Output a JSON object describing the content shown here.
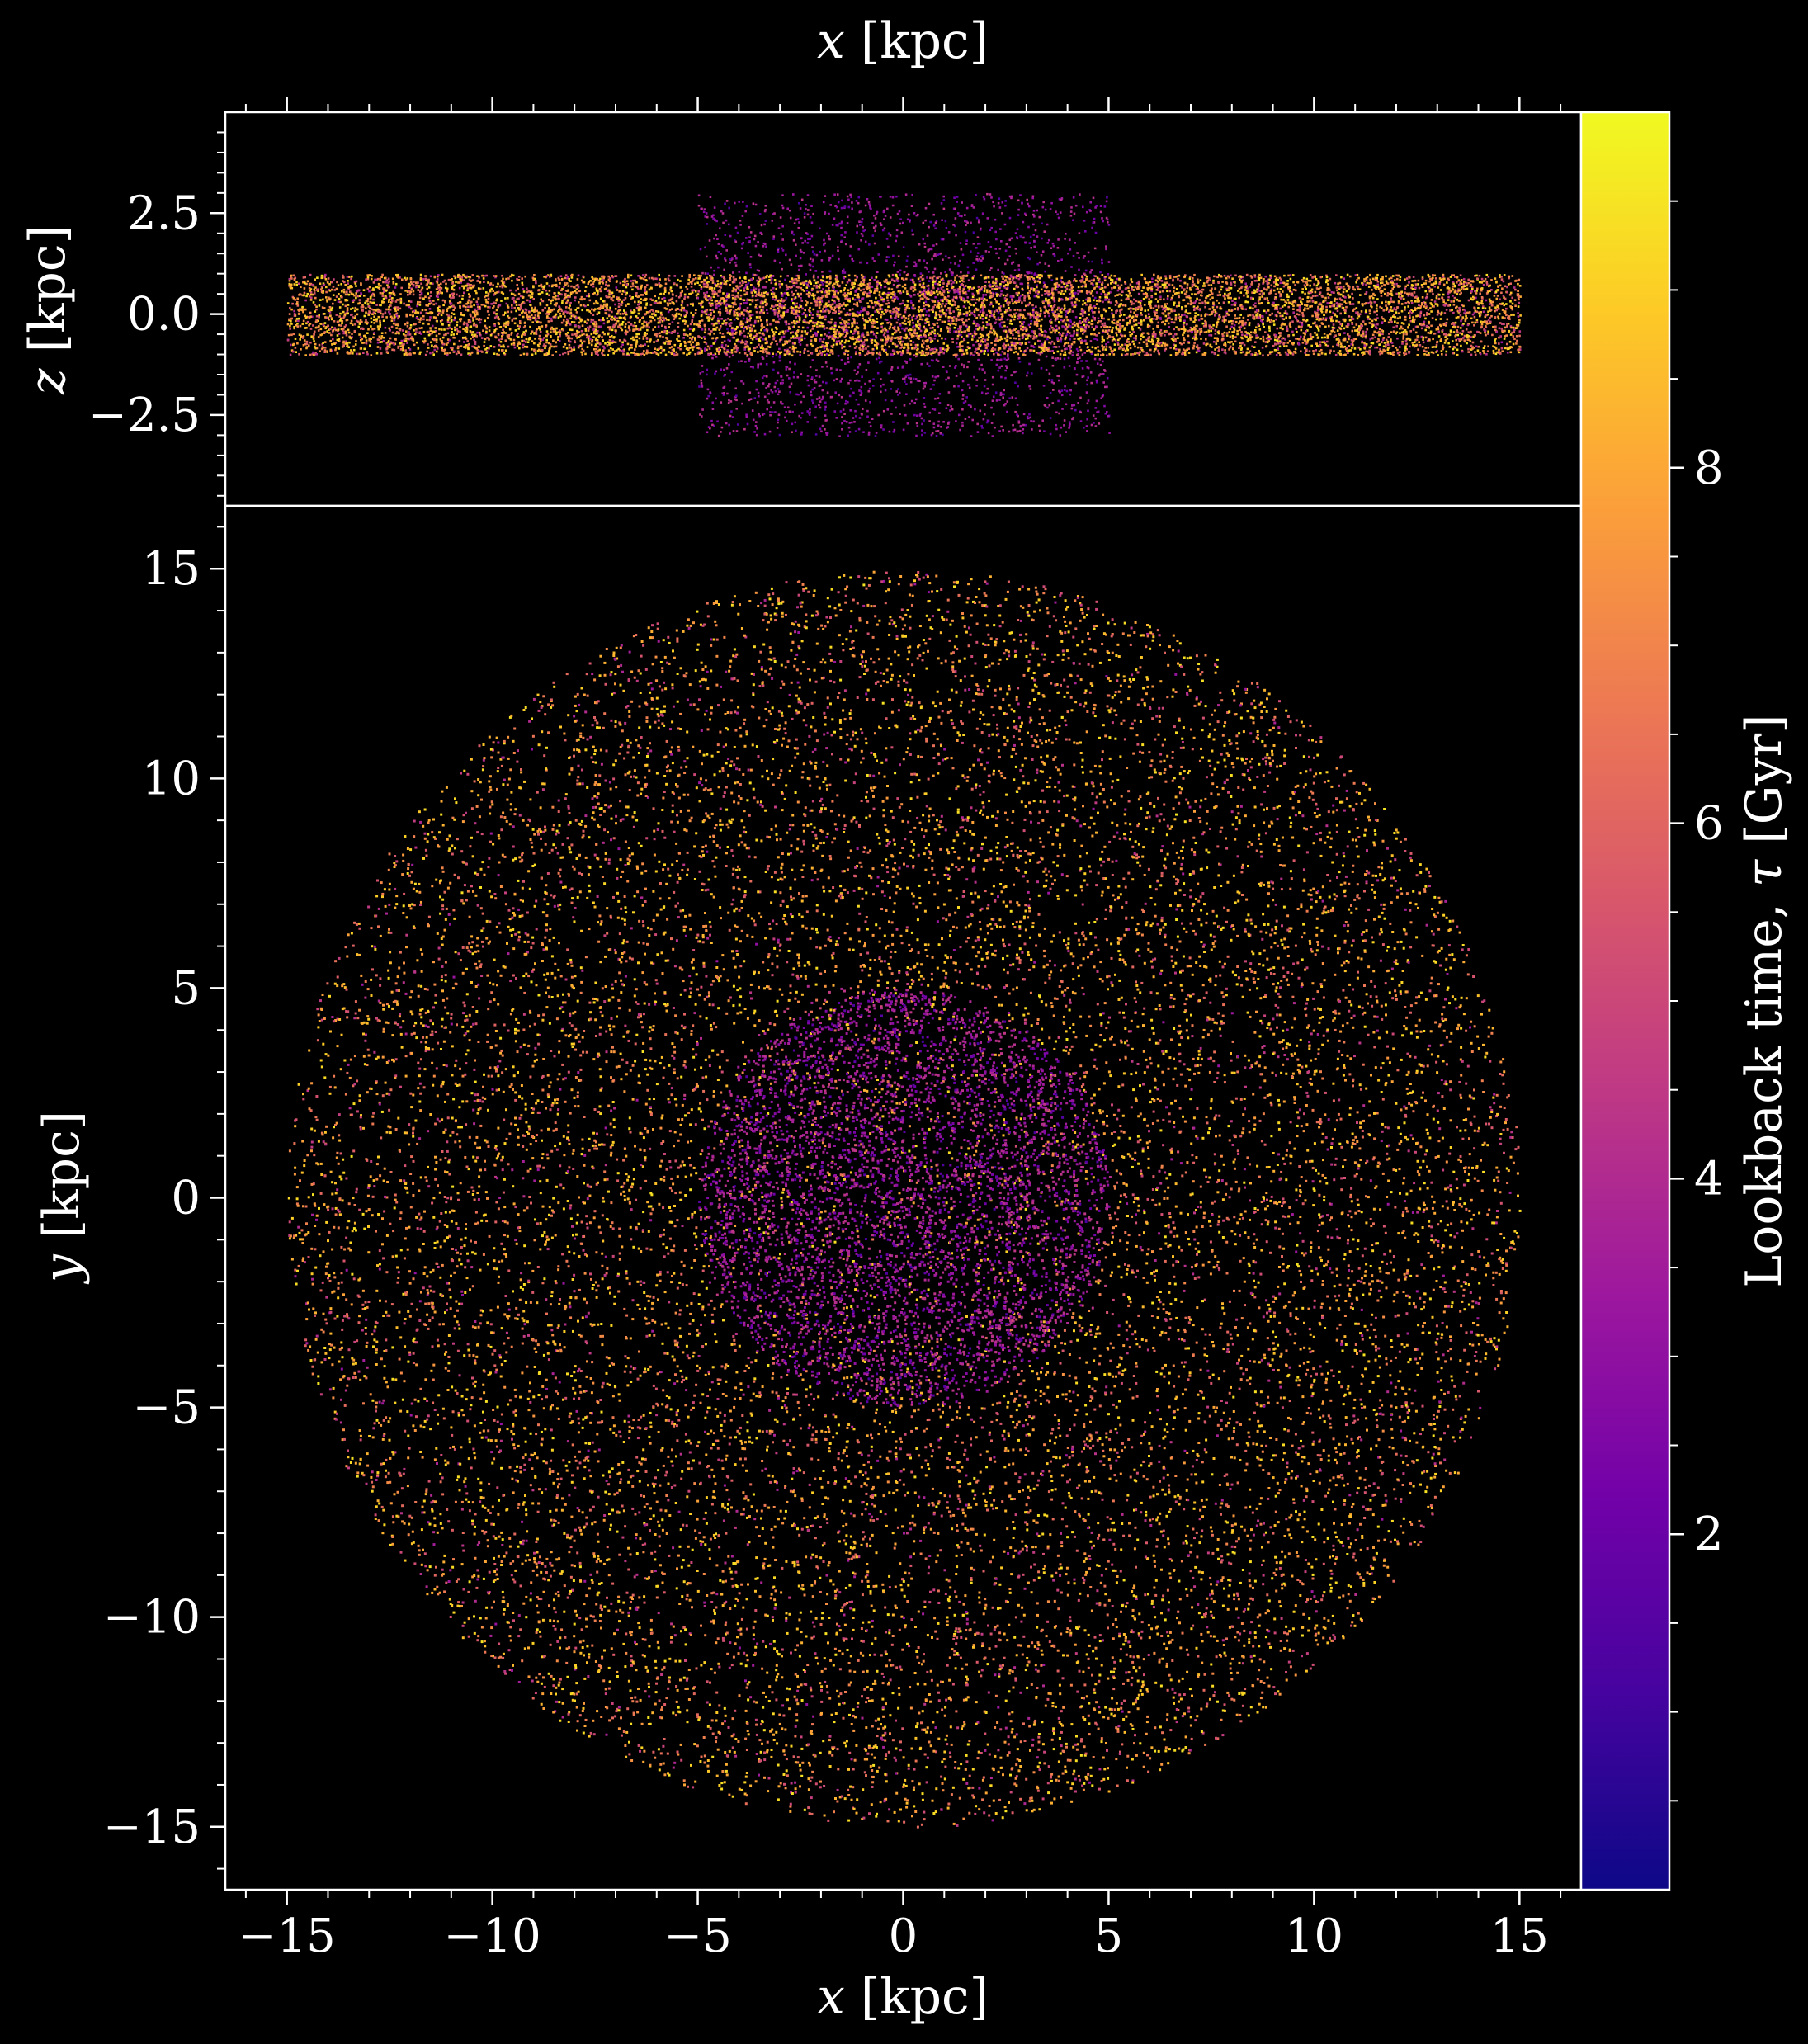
{
  "chart_data": [
    {
      "type": "scatter",
      "panel": "edge-on (x-z projection)",
      "title": "",
      "xlabel_top": "x [kpc]",
      "ylabel": "z [kpc]",
      "xlim": [
        -16.5,
        16.5
      ],
      "ylim": [
        -4.75,
        5.0
      ],
      "y_ticks": [
        -2.5,
        0.0,
        2.5
      ],
      "y_tick_labels": [
        "−2.5",
        "0.0",
        "2.5"
      ],
      "components": [
        {
          "component": "bulge (box)",
          "x_range": [
            -5,
            5
          ],
          "z_range": [
            -3,
            3
          ],
          "age_range_gyr": [
            1.0,
            4.5
          ]
        },
        {
          "component": "disk (slab)",
          "x_range": [
            -15,
            15
          ],
          "z_range": [
            -1,
            1
          ],
          "age_range_gyr": [
            3.0,
            9.5
          ]
        }
      ]
    },
    {
      "type": "scatter",
      "panel": "face-on (x-y projection)",
      "title": "",
      "xlabel": "x [kpc]",
      "ylabel": "y [kpc]",
      "xlim": [
        -16.5,
        16.5
      ],
      "ylim": [
        -16.5,
        16.5
      ],
      "x_ticks": [
        -15,
        -10,
        -5,
        0,
        5,
        10,
        15
      ],
      "x_tick_labels": [
        "−15",
        "−10",
        "−5",
        "0",
        "5",
        "10",
        "15"
      ],
      "y_ticks": [
        -15,
        -10,
        -5,
        0,
        5,
        10,
        15
      ],
      "y_tick_labels": [
        "−15",
        "−10",
        "−5",
        "0",
        "5",
        "10",
        "15"
      ],
      "components": [
        {
          "component": "disk",
          "radius_kpc": 15,
          "age_range_gyr": [
            3.0,
            9.5
          ]
        },
        {
          "component": "bulge",
          "radius_kpc": 5,
          "age_range_gyr": [
            1.0,
            4.5
          ]
        }
      ]
    }
  ],
  "colorbar": {
    "label": "Lookback time, τ [Gyr]",
    "colormap": "plasma",
    "range": [
      0,
      10
    ],
    "ticks": [
      2,
      4,
      6,
      8
    ],
    "tick_labels": [
      "2",
      "4",
      "6",
      "8"
    ],
    "colors": [
      "#0d0887",
      "#46039f",
      "#7201a8",
      "#9c179e",
      "#bd3786",
      "#d8576b",
      "#ed7953",
      "#fb9f3a",
      "#fdca26",
      "#f0f921"
    ]
  },
  "style": {
    "background": "#000000",
    "axes_color": "#ffffff"
  }
}
